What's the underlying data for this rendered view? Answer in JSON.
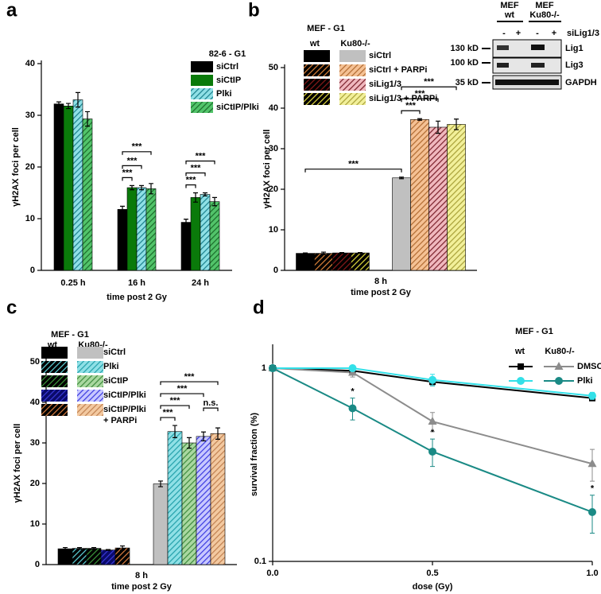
{
  "chart_data": [
    {
      "type": "bar",
      "panel": "a",
      "legend_title": "82-6 - G1",
      "x_label": "time post 2 Gy",
      "y_label": "γH2AX foci per cell",
      "categories": [
        "0.25 h",
        "16 h",
        "24 h"
      ],
      "ylim": [
        0,
        40
      ],
      "yticks": [
        0,
        10,
        20,
        30,
        40
      ],
      "series": [
        {
          "name": "siCtrl",
          "color": "#000000",
          "hatch": null,
          "values": [
            32.2,
            11.8,
            9.3
          ],
          "errors": [
            0.4,
            0.6,
            0.6
          ]
        },
        {
          "name": "siCtIP",
          "color": "#0a7a0a",
          "hatch": null,
          "values": [
            31.8,
            16,
            14.1
          ],
          "errors": [
            0.5,
            0.4,
            0.9
          ]
        },
        {
          "name": "Plki",
          "color": "#8fe0e6",
          "hatch": "#1a7f8c",
          "values": [
            33,
            16,
            14.7
          ],
          "errors": [
            1.4,
            0.4,
            0.3
          ]
        },
        {
          "name": "siCtIP/Plki",
          "color": "#52c46a",
          "hatch": "#1b6b2a",
          "values": [
            29.3,
            15.8,
            13.3
          ],
          "errors": [
            1.4,
            1,
            0.8
          ]
        }
      ],
      "brackets": [
        {
          "label": "***",
          "from": 4,
          "to": 5
        },
        {
          "label": "***",
          "from": 4,
          "to": 6
        },
        {
          "label": "***",
          "from": 4,
          "to": 7
        },
        {
          "label": "***",
          "from": 8,
          "to": 9
        },
        {
          "label": "***",
          "from": 8,
          "to": 10
        },
        {
          "label": "***",
          "from": 8,
          "to": 11
        }
      ]
    },
    {
      "type": "bar",
      "panel": "b",
      "legend_title": "MEF - G1",
      "category": "8 h",
      "x_label": "time post 2 Gy",
      "y_label": "γH2AX foci per cell",
      "groups": [
        "wt",
        "Ku80-/-"
      ],
      "ylim": [
        0,
        50
      ],
      "yticks": [
        0,
        10,
        20,
        30,
        40,
        50
      ],
      "series": [
        {
          "name": "siCtrl",
          "color": [
            "#000000",
            "#c0c0c0"
          ],
          "hatch": null,
          "values": [
            4.2,
            22.8
          ],
          "errors": [
            0.1,
            0.2
          ]
        },
        {
          "name": "siCtrl + PARPi",
          "color": [
            "#000000",
            "#f5c194"
          ],
          "hatch": [
            "#e0853a",
            "#b06a30"
          ],
          "values": [
            4.2,
            37.2
          ],
          "errors": [
            0.3,
            0.2
          ]
        },
        {
          "name": "siLig1/3",
          "color": [
            "#000000",
            "#f0b8be"
          ],
          "hatch": [
            "#8b1a1a",
            "#7a1f2a"
          ],
          "values": [
            4.3,
            35.3
          ],
          "errors": [
            0.1,
            1.5
          ]
        },
        {
          "name": "siLig1/3 + PARPi",
          "color": [
            "#000000",
            "#f2f09a"
          ],
          "hatch": [
            "#e8e040",
            "#a8a038"
          ],
          "values": [
            4.3,
            36
          ],
          "errors": [
            0.1,
            1.3
          ]
        }
      ],
      "brackets": [
        {
          "label": "***",
          "from": 0,
          "to": 4
        },
        {
          "label": "***",
          "from": 4,
          "to": 5
        },
        {
          "label": "***",
          "from": 4,
          "to": 6
        },
        {
          "label": "***",
          "from": 4,
          "to": 7
        }
      ]
    },
    {
      "type": "bar",
      "panel": "c",
      "legend_title": "MEF - G1",
      "category": "8 h",
      "x_label": "time post 2 Gy",
      "y_label": "γH2AX foci per cell",
      "groups": [
        "wt",
        "Ku80-/-"
      ],
      "ylim": [
        0,
        50
      ],
      "yticks": [
        0,
        10,
        20,
        30,
        40,
        50
      ],
      "series": [
        {
          "name": [
            "siCtrl"
          ],
          "color": [
            "#000000",
            "#c0c0c0"
          ],
          "hatch": null,
          "values": [
            3.9,
            19.9
          ],
          "errors": [
            0.3,
            0.7
          ]
        },
        {
          "name": [
            "Plki"
          ],
          "color": [
            "#000000",
            "#8fe0e6"
          ],
          "hatch": [
            "#5fd6dd",
            "#22a0aa"
          ],
          "values": [
            4,
            32.8
          ],
          "errors": [
            0.2,
            1.5
          ]
        },
        {
          "name": [
            "siCtIP"
          ],
          "color": [
            "#000000",
            "#a9d8a0"
          ],
          "hatch": [
            "#3d9a3d",
            "#3d8a3d"
          ],
          "values": [
            4,
            30
          ],
          "errors": [
            0.2,
            1.3
          ]
        },
        {
          "name": [
            "siCtIP/Plki"
          ],
          "color": [
            "#0a0a6a",
            "#c8c8ff"
          ],
          "hatch": [
            "#3a3adb",
            "#3a3ae0"
          ],
          "values": [
            3.6,
            31.6
          ],
          "errors": [
            0.1,
            1.1
          ]
        },
        {
          "name": [
            "siCtIP/Plki",
            "+ PARPi"
          ],
          "color": [
            "#000000",
            "#f3c9a0"
          ],
          "hatch": [
            "#e08040",
            "#c08050"
          ],
          "values": [
            4.1,
            32.3
          ],
          "errors": [
            0.5,
            1.4
          ]
        }
      ],
      "brackets": [
        {
          "label": "***",
          "from": 5,
          "to": 6
        },
        {
          "label": "***",
          "from": 5,
          "to": 7
        },
        {
          "label": "***",
          "from": 5,
          "to": 8
        },
        {
          "label": "***",
          "from": 5,
          "to": 9
        },
        {
          "label": "n.s.",
          "from": 8,
          "to": 9
        }
      ]
    },
    {
      "type": "line",
      "panel": "d",
      "legend_title": "MEF - G1",
      "legend_columns": [
        "wt",
        "Ku80-/-"
      ],
      "legend_rows": [
        "DMSO",
        "Plki"
      ],
      "x_label": "dose (Gy)",
      "y_label": "survival fraction (%)",
      "log_y": true,
      "x": [
        0,
        0.25,
        0.5,
        1
      ],
      "xlim": [
        0,
        1
      ],
      "xticks": [
        {
          "value": 0,
          "label": "0.0"
        },
        {
          "value": 0.5,
          "label": "0.5"
        },
        {
          "value": 1,
          "label": "1.0"
        }
      ],
      "ylim": [
        0.1,
        1.28
      ],
      "yticks": [
        0.1,
        1
      ],
      "series": [
        {
          "color": "#000000",
          "marker": "square",
          "values": [
            1,
            0.97,
            0.85,
            0.7
          ],
          "errors": [
            0,
            0.03,
            0.04,
            0.02
          ]
        },
        {
          "color": "#8c8c8c",
          "marker": "triangle",
          "values": [
            1,
            0.95,
            0.53,
            0.32
          ],
          "errors": [
            0,
            0.05,
            0.06,
            0.06
          ]
        },
        {
          "color": "#33e0e8",
          "marker": "circle",
          "values": [
            1,
            1,
            0.87,
            0.72
          ],
          "errors": [
            0,
            0.03,
            0.06,
            0.03
          ]
        },
        {
          "color": "#1a8a85",
          "marker": "circle",
          "values": [
            1,
            0.62,
            0.37,
            0.18
          ],
          "errors": [
            0,
            0.08,
            0.06,
            0.04
          ]
        }
      ],
      "annotations": [
        {
          "text": "*",
          "series": 3,
          "index": 1
        },
        {
          "text": "*",
          "series": 3,
          "index": 2
        },
        {
          "text": "*",
          "series": 3,
          "index": 3
        }
      ]
    }
  ],
  "blot": {
    "headers": [
      [
        "MEF",
        "wt"
      ],
      [
        "MEF",
        "Ku80-/-"
      ]
    ],
    "lanes": [
      "-",
      "+",
      "-",
      "+"
    ],
    "treatment": "siLig1/3",
    "bands": [
      {
        "size": "130 kD",
        "name": "Lig1"
      },
      {
        "size": "100 kD",
        "name": "Lig3"
      },
      {
        "size": "35 kD",
        "name": "GAPDH"
      }
    ]
  }
}
